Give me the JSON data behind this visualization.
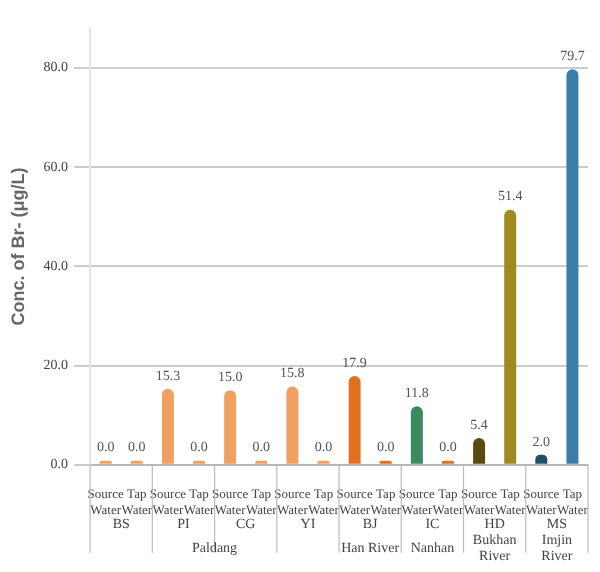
{
  "chart_data": {
    "type": "bar",
    "ylabel": "Conc. of Br- (μg/L)",
    "categories": [
      "Source Water",
      "Tap Water",
      "Source Water",
      "Tap Water",
      "Source Water",
      "Tap Water",
      "Source Water",
      "Tap Water",
      "Source Water",
      "Tap Water",
      "Source Water",
      "Tap Water",
      "Source Water",
      "Tap Water",
      "Source Water",
      "Tap Water"
    ],
    "values": [
      0,
      0,
      15.3,
      0,
      15.0,
      0,
      15.8,
      0,
      17.9,
      0,
      11.8,
      0,
      5.4,
      51.4,
      2.0,
      79.7
    ],
    "value_labels": [
      "0.0",
      "0.0",
      "15.3",
      "0.0",
      "15.0",
      "0.0",
      "15.8",
      "0.0",
      "17.9",
      "0.0",
      "11.8",
      "0.0",
      "5.4",
      "51.4",
      "2.0",
      "79.7"
    ],
    "colors": [
      "#f0a060",
      "#f0a060",
      "#f0a060",
      "#f0a060",
      "#f0a060",
      "#f0a060",
      "#f0a060",
      "#f0a060",
      "#e07020",
      "#e07020",
      "#3a8a60",
      "#e07020",
      "#5a4a10",
      "#a08a20",
      "#1f4e6a",
      "#3a7ea8"
    ],
    "ylim": [
      0,
      88
    ],
    "yticks": [
      {
        "value": 0,
        "label": "0.0"
      },
      {
        "value": 20,
        "label": "20.0"
      },
      {
        "value": 40,
        "label": "40.0"
      },
      {
        "value": 60,
        "label": "60.0"
      },
      {
        "value": 80,
        "label": "80.0"
      }
    ],
    "grid": "y",
    "annotations": [
      "BS",
      "PI",
      "CG",
      "YI",
      "BJ",
      "IC",
      "HD",
      "MS",
      "Paldang",
      "Han River",
      "Nanhan",
      "Bukhan River",
      "Imjin River"
    ]
  }
}
